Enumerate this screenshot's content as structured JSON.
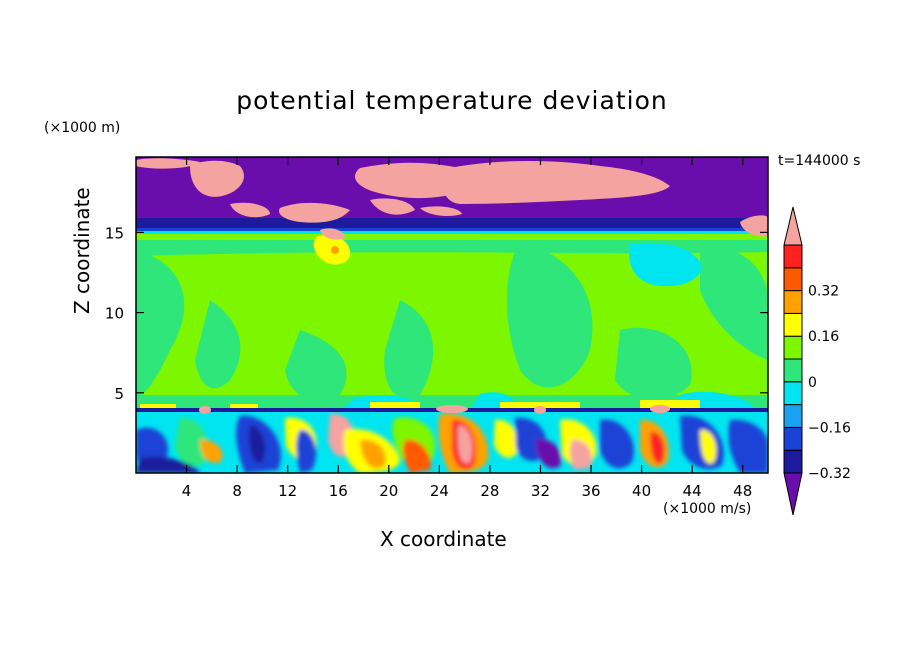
{
  "chart_data": {
    "type": "heatmap",
    "title": "potential temperature deviation",
    "xlabel": "X coordinate",
    "ylabel": "Z coordinate",
    "x_unit": "(×1000 m/s)",
    "z_unit": "(×1000 m)",
    "time_label": "t=144000 s",
    "xlim": [
      0,
      50
    ],
    "zlim": [
      0,
      19.7
    ],
    "x_ticks": [
      4,
      8,
      12,
      16,
      20,
      24,
      28,
      32,
      36,
      40,
      44,
      48
    ],
    "z_ticks": [
      5,
      10,
      15
    ],
    "colorbar": {
      "labels": [
        "0.32",
        "0.16",
        "0",
        "−0.16",
        "−0.32"
      ],
      "label_values": [
        0.32,
        0.16,
        0,
        -0.16,
        -0.32
      ],
      "levels": [
        -0.4,
        -0.32,
        -0.24,
        -0.16,
        -0.08,
        0,
        0.08,
        0.16,
        0.24,
        0.32,
        0.4
      ],
      "colors": [
        "#6a0dad",
        "#1d1a9e",
        "#1a43d6",
        "#1ca2f2",
        "#00e5f0",
        "#2ee67a",
        "#7df700",
        "#ffff00",
        "#ffa200",
        "#ff5a00",
        "#ff2020",
        "#f5a3a0"
      ],
      "extend": "both"
    }
  }
}
